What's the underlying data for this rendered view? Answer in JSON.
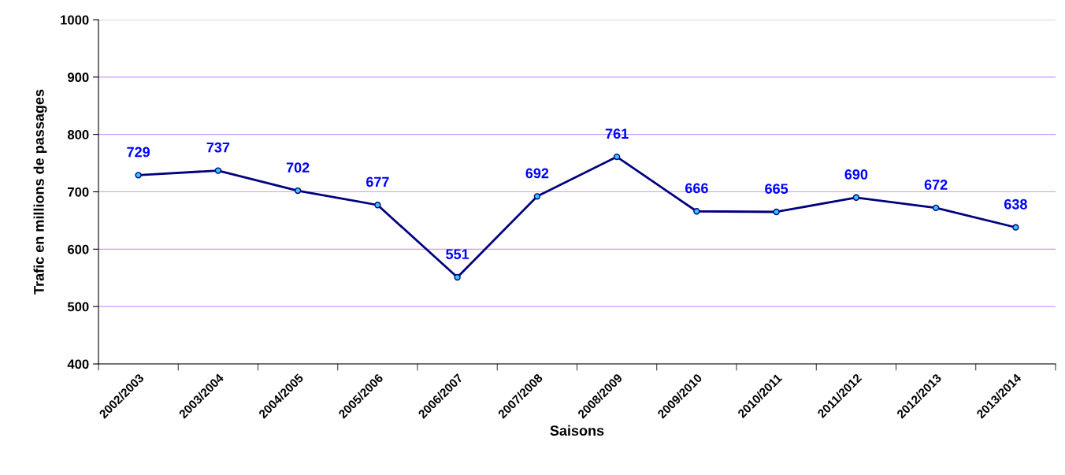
{
  "chart_data": {
    "type": "line",
    "xlabel": "Saisons",
    "ylabel": "Trafic en millions de passages",
    "categories": [
      "2002/2003",
      "2003/2004",
      "2004/2005",
      "2005/2006",
      "2006/2007",
      "2007/2008",
      "2008/2009",
      "2009/2010",
      "2010/2011",
      "2011/2012",
      "2012/2013",
      "2013/2014"
    ],
    "series": [
      {
        "color": "#000080",
        "values": [
          729,
          737,
          702,
          677,
          551,
          692,
          761,
          666,
          665,
          690,
          672,
          638
        ]
      }
    ],
    "ylim": [
      400,
      1000
    ],
    "yticks": [
      400,
      500,
      600,
      700,
      800,
      900,
      1000
    ],
    "grid": "y",
    "marker": "circle",
    "line_style": "solid",
    "data_labels": true
  }
}
